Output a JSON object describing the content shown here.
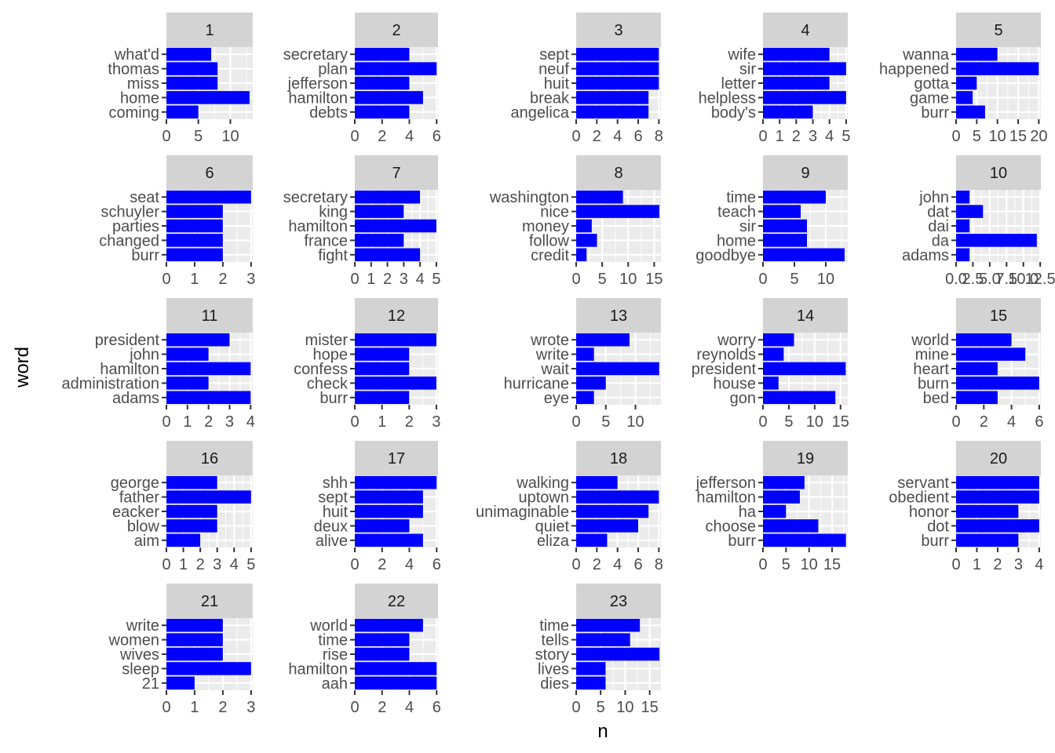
{
  "chart_data": {
    "type": "bar",
    "orientation": "horizontal",
    "xlabel": "n",
    "ylabel": "word",
    "bar_color": "#0000ff",
    "panel_background": "#ebebeb",
    "strip_background": "#d3d3d3",
    "grid": true,
    "facets": [
      {
        "label": "1",
        "words": [
          "what'd",
          "thomas",
          "miss",
          "home",
          "coming"
        ],
        "values": [
          7,
          8,
          8,
          13,
          5
        ],
        "xlim": [
          0,
          13.5
        ],
        "ticks": [
          0,
          5,
          10
        ]
      },
      {
        "label": "2",
        "words": [
          "secretary",
          "plan",
          "jefferson",
          "hamilton",
          "debts"
        ],
        "values": [
          4,
          6,
          4,
          5,
          4
        ],
        "xlim": [
          0,
          6.1
        ],
        "ticks": [
          0,
          2,
          4,
          6
        ]
      },
      {
        "label": "3",
        "words": [
          "sept",
          "neuf",
          "huit",
          "break",
          "angelica"
        ],
        "values": [
          8,
          8,
          8,
          7,
          7
        ],
        "xlim": [
          0,
          8.2
        ],
        "ticks": [
          0,
          2,
          4,
          6,
          8
        ]
      },
      {
        "label": "4",
        "words": [
          "wife",
          "sir",
          "letter",
          "helpless",
          "body's"
        ],
        "values": [
          4,
          5,
          4,
          5,
          3
        ],
        "xlim": [
          0,
          5.1
        ],
        "ticks": [
          0,
          1,
          2,
          3,
          4,
          5
        ]
      },
      {
        "label": "5",
        "words": [
          "wanna",
          "happened",
          "gotta",
          "game",
          "burr"
        ],
        "values": [
          10,
          20,
          5,
          4,
          7
        ],
        "xlim": [
          0,
          20.5
        ],
        "ticks": [
          0,
          5,
          10,
          15,
          20
        ],
        "tick_labels": [
          "0",
          "5",
          "10",
          "15",
          "20"
        ]
      },
      {
        "label": "6",
        "words": [
          "seat",
          "schuyler",
          "parties",
          "changed",
          "burr"
        ],
        "values": [
          3,
          2,
          2,
          2,
          2
        ],
        "xlim": [
          0,
          3.06
        ],
        "ticks": [
          0,
          1,
          2,
          3
        ]
      },
      {
        "label": "7",
        "words": [
          "secretary",
          "king",
          "hamilton",
          "france",
          "fight"
        ],
        "values": [
          4,
          3,
          5,
          3,
          4
        ],
        "xlim": [
          0,
          5.1
        ],
        "ticks": [
          0,
          1,
          2,
          3,
          4,
          5
        ]
      },
      {
        "label": "8",
        "words": [
          "washington",
          "nice",
          "money",
          "follow",
          "credit"
        ],
        "values": [
          9,
          16,
          3,
          4,
          2
        ],
        "xlim": [
          0,
          16.3
        ],
        "ticks": [
          0,
          5,
          10,
          15
        ]
      },
      {
        "label": "9",
        "words": [
          "time",
          "teach",
          "sir",
          "home",
          "goodbye"
        ],
        "values": [
          10,
          6,
          7,
          7,
          13
        ],
        "xlim": [
          0,
          13.5
        ],
        "ticks": [
          0,
          5,
          10
        ]
      },
      {
        "label": "10",
        "words": [
          "john",
          "dat",
          "dai",
          "da",
          "adams"
        ],
        "values": [
          2,
          4,
          2,
          12,
          2
        ],
        "xlim": [
          0,
          12.6
        ],
        "ticks": [
          0,
          2.5,
          5,
          7.5,
          10,
          12.5
        ],
        "tick_labels": [
          "0.0",
          "2.5",
          "5.0",
          "7.5",
          "10.0",
          "12.5"
        ]
      },
      {
        "label": "11",
        "words": [
          "president",
          "john",
          "hamilton",
          "administration",
          "adams"
        ],
        "values": [
          3,
          2,
          4,
          2,
          4
        ],
        "xlim": [
          0,
          4.1
        ],
        "ticks": [
          0,
          1,
          2,
          3,
          4
        ]
      },
      {
        "label": "12",
        "words": [
          "mister",
          "hope",
          "confess",
          "check",
          "burr"
        ],
        "values": [
          3,
          2,
          2,
          3,
          2
        ],
        "xlim": [
          0,
          3.06
        ],
        "ticks": [
          0,
          1,
          2,
          3
        ]
      },
      {
        "label": "13",
        "words": [
          "wrote",
          "write",
          "wait",
          "hurricane",
          "eye"
        ],
        "values": [
          9,
          3,
          14,
          5,
          3
        ],
        "xlim": [
          0,
          14.3
        ],
        "ticks": [
          0,
          5,
          10
        ]
      },
      {
        "label": "14",
        "words": [
          "worry",
          "reynolds",
          "president",
          "house",
          "gon"
        ],
        "values": [
          6,
          4,
          16,
          3,
          14
        ],
        "xlim": [
          0,
          16.4
        ],
        "ticks": [
          0,
          5,
          10,
          15
        ]
      },
      {
        "label": "15",
        "words": [
          "world",
          "mine",
          "heart",
          "burn",
          "bed"
        ],
        "values": [
          4,
          5,
          3,
          6,
          3
        ],
        "xlim": [
          0,
          6.12
        ],
        "ticks": [
          0,
          2,
          4,
          6
        ]
      },
      {
        "label": "16",
        "words": [
          "george",
          "father",
          "eacker",
          "blow",
          "aim"
        ],
        "values": [
          3,
          5,
          3,
          3,
          2
        ],
        "xlim": [
          0,
          5.1
        ],
        "ticks": [
          0,
          1,
          2,
          3,
          4,
          5
        ]
      },
      {
        "label": "17",
        "words": [
          "shh",
          "sept",
          "huit",
          "deux",
          "alive"
        ],
        "values": [
          6,
          5,
          5,
          4,
          5
        ],
        "xlim": [
          0,
          6.1
        ],
        "ticks": [
          0,
          2,
          4,
          6
        ]
      },
      {
        "label": "18",
        "words": [
          "walking",
          "uptown",
          "unimaginable",
          "quiet",
          "eliza"
        ],
        "values": [
          4,
          8,
          7,
          6,
          3
        ],
        "xlim": [
          0,
          8.2
        ],
        "ticks": [
          0,
          2,
          4,
          6,
          8
        ]
      },
      {
        "label": "19",
        "words": [
          "jefferson",
          "hamilton",
          "ha",
          "choose",
          "burr"
        ],
        "values": [
          9,
          8,
          5,
          12,
          18
        ],
        "xlim": [
          0,
          18.4
        ],
        "ticks": [
          0,
          5,
          10,
          15
        ]
      },
      {
        "label": "20",
        "words": [
          "servant",
          "obedient",
          "honor",
          "dot",
          "burr"
        ],
        "values": [
          4,
          4,
          3,
          4,
          3
        ],
        "xlim": [
          0,
          4.08
        ],
        "ticks": [
          0,
          1,
          2,
          3,
          4
        ]
      },
      {
        "label": "21",
        "words": [
          "write",
          "women",
          "wives",
          "sleep",
          "21"
        ],
        "values": [
          2,
          2,
          2,
          3,
          1
        ],
        "xlim": [
          0,
          3.06
        ],
        "ticks": [
          0,
          1,
          2,
          3
        ]
      },
      {
        "label": "22",
        "words": [
          "world",
          "time",
          "rise",
          "hamilton",
          "aah"
        ],
        "values": [
          5,
          4,
          4,
          6,
          6
        ],
        "xlim": [
          0,
          6.1
        ],
        "ticks": [
          0,
          2,
          4,
          6
        ]
      },
      {
        "label": "23",
        "words": [
          "time",
          "tells",
          "story",
          "lives",
          "dies"
        ],
        "values": [
          13,
          11,
          17,
          6,
          6
        ],
        "xlim": [
          0,
          17.3
        ],
        "ticks": [
          0,
          5,
          10,
          15
        ]
      }
    ]
  }
}
